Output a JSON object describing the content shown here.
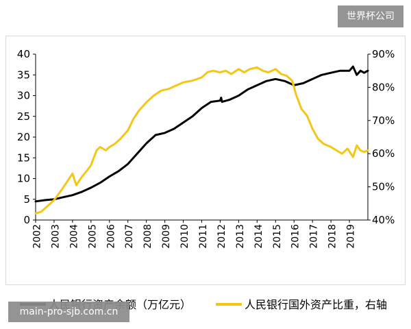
{
  "watermarks": {
    "top_right": "世界杯公司",
    "bottom_left": "main-pro-sjb.com.cn"
  },
  "colors": {
    "black_series": "#000000",
    "yellow_series": "#f5c518",
    "axis": "#000000"
  },
  "chart_data": {
    "type": "line",
    "title": "",
    "xlabel": "",
    "ylabel": "",
    "x_tick_labels": [
      "2002",
      "2003",
      "2004",
      "2005",
      "2006",
      "2007",
      "2008",
      "2009",
      "2010",
      "2011",
      "2012",
      "2013",
      "2014",
      "2015",
      "2016",
      "2017",
      "2018",
      "2019"
    ],
    "left_axis": {
      "ylim": [
        0,
        40
      ],
      "ticks": [
        "0",
        "5",
        "10",
        "15",
        "20",
        "25",
        "30",
        "35",
        "40"
      ]
    },
    "right_axis": {
      "ylim": [
        40,
        90
      ],
      "ticks": [
        "40%",
        "50%",
        "60%",
        "70%",
        "80%",
        "90%"
      ]
    },
    "grid": false,
    "legend_position": "bottom",
    "series": [
      {
        "name": "人民银行资产余额（万亿元）",
        "axis": "left",
        "color": "#000000",
        "x": [
          2002.0,
          2002.5,
          2003.0,
          2003.5,
          2004.0,
          2004.5,
          2005.0,
          2005.5,
          2006.0,
          2006.5,
          2007.0,
          2007.5,
          2008.0,
          2008.5,
          2009.0,
          2009.5,
          2010.0,
          2010.5,
          2011.0,
          2011.5,
          2012.0,
          2012.05,
          2012.1,
          2012.5,
          2013.0,
          2013.5,
          2014.0,
          2014.5,
          2015.0,
          2015.5,
          2016.0,
          2016.5,
          2017.0,
          2017.5,
          2018.0,
          2018.5,
          2019.0,
          2019.2,
          2019.4,
          2019.6,
          2019.8,
          2020.0
        ],
        "values": [
          4.5,
          4.8,
          5.0,
          5.5,
          6.0,
          6.8,
          7.8,
          9.0,
          10.5,
          11.8,
          13.5,
          16.0,
          18.5,
          20.5,
          21.0,
          22.0,
          23.5,
          25.0,
          27.0,
          28.5,
          28.8,
          29.5,
          28.5,
          29.0,
          30.0,
          31.5,
          32.5,
          33.5,
          34.0,
          33.5,
          32.5,
          33.0,
          34.0,
          35.0,
          35.5,
          36.0,
          36.0,
          37.0,
          35.0,
          36.0,
          35.5,
          36.0
        ]
      },
      {
        "name": "人民银行国外资产比重，右轴",
        "axis": "right",
        "color": "#f5c518",
        "x": [
          2002.0,
          2002.3,
          2002.7,
          2003.0,
          2003.4,
          2003.7,
          2004.0,
          2004.2,
          2004.5,
          2004.8,
          2005.0,
          2005.3,
          2005.5,
          2005.8,
          2006.0,
          2006.3,
          2006.6,
          2007.0,
          2007.3,
          2007.6,
          2008.0,
          2008.4,
          2008.8,
          2009.2,
          2009.6,
          2010.0,
          2010.5,
          2011.0,
          2011.3,
          2011.6,
          2012.0,
          2012.3,
          2012.6,
          2013.0,
          2013.3,
          2013.6,
          2014.0,
          2014.3,
          2014.6,
          2015.0,
          2015.3,
          2015.6,
          2015.9,
          2016.1,
          2016.4,
          2016.7,
          2017.0,
          2017.3,
          2017.6,
          2018.0,
          2018.3,
          2018.6,
          2018.9,
          2019.2,
          2019.4,
          2019.6,
          2019.8,
          2020.0
        ],
        "values": [
          42.0,
          42.5,
          44.5,
          46.0,
          49.0,
          51.5,
          54.0,
          50.5,
          53.0,
          55.0,
          56.5,
          61.0,
          62.0,
          61.0,
          62.0,
          63.0,
          64.5,
          67.0,
          70.5,
          73.0,
          75.5,
          77.5,
          79.0,
          79.5,
          80.5,
          81.5,
          82.0,
          83.0,
          84.5,
          85.0,
          84.5,
          85.0,
          84.0,
          85.5,
          84.5,
          85.5,
          86.0,
          85.0,
          84.5,
          85.5,
          84.0,
          83.5,
          82.0,
          78.0,
          73.5,
          71.5,
          67.5,
          64.5,
          63.0,
          62.0,
          61.0,
          60.0,
          61.5,
          59.0,
          62.5,
          61.0,
          60.5,
          61.0
        ]
      }
    ]
  },
  "legend": {
    "item1_label": "人民银行资产余额（万亿元）",
    "item2_label": "人民银行国外资产比重，右轴"
  }
}
